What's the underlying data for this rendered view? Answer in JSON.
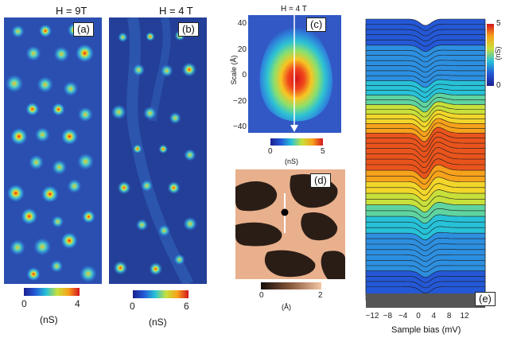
{
  "figure": {
    "panels": {
      "a": {
        "label": "(a)",
        "field_title": "H = 9T",
        "colorbar": {
          "min": "0",
          "max": "4",
          "unit": "(nS)"
        }
      },
      "b": {
        "label": "(b)",
        "field_title": "H = 4 T",
        "colorbar": {
          "min": "0",
          "max": "6",
          "unit": "(nS)"
        }
      },
      "c": {
        "label": "(c)",
        "field_title": "H = 4 T",
        "ylabel": "Scale (Å)",
        "yticks": [
          "40",
          "20",
          "0",
          "−20",
          "−40"
        ],
        "colorbar": {
          "min": "0",
          "max": "5",
          "unit": "(nS)"
        }
      },
      "d": {
        "label": "(d)",
        "colorbar": {
          "min": "0",
          "max": "2",
          "unit": "(Å)"
        }
      },
      "e": {
        "label": "(e)",
        "xlabel": "Sample bias (mV)",
        "xticks": [
          "−12",
          "−8",
          "−4",
          "0",
          "4",
          "8",
          "12"
        ],
        "colorbar": {
          "min": "0",
          "max": "5",
          "unit": "(nS)"
        }
      }
    },
    "colors": {
      "map_bg": "#2b4fb0",
      "vortex_core": "#e8202a",
      "topo_dark": "#2a1d16",
      "topo_light": "#e9b08d"
    }
  }
}
